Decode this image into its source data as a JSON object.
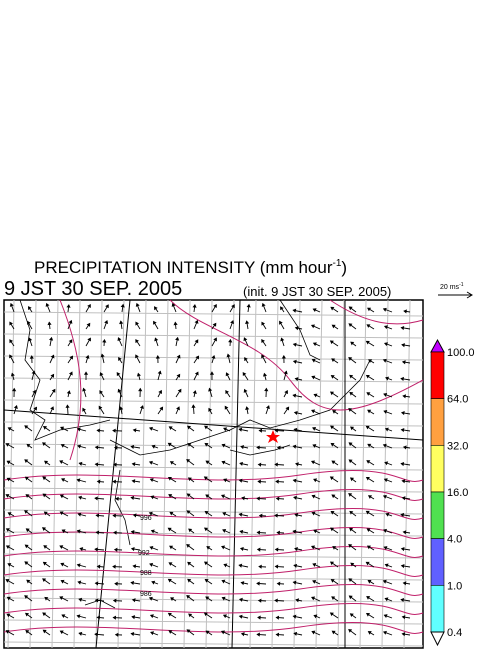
{
  "header": {
    "title": "PRECIPITATION INTENSITY (mm hour",
    "title_sup": "-1",
    "title_end": ")",
    "valid_time": "9 JST 30 SEP. 2005",
    "init_time": "(init. 9 JST 30 SEP. 2005)"
  },
  "scale_arrow": {
    "label": "20 ms",
    "label_sup": "-1"
  },
  "colorbar": {
    "levels": [
      {
        "label": "100.0",
        "color": "#ff0000"
      },
      {
        "label": "64.0",
        "color": "#ffa040"
      },
      {
        "label": "32.0",
        "color": "#ffff60"
      },
      {
        "label": "16.0",
        "color": "#50e050"
      },
      {
        "label": "4.0",
        "color": "#6060ff"
      },
      {
        "label": "1.0",
        "color": "#60ffff"
      },
      {
        "label": "0.4",
        "color": "#ffffff"
      }
    ],
    "top_color": "#c000ff",
    "bottom_color": "#ffffff"
  },
  "map": {
    "isobar_labels": [
      "996",
      "992",
      "988",
      "986"
    ]
  }
}
